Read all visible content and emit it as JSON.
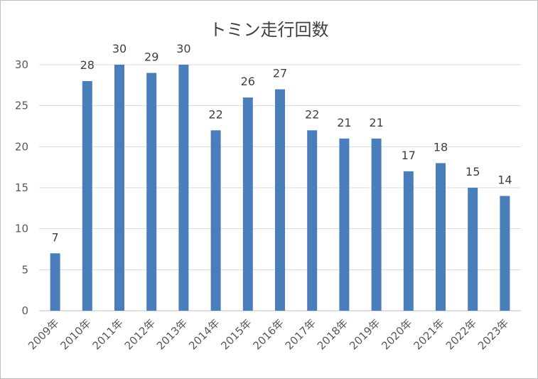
{
  "chart_data": {
    "type": "bar",
    "title": "トミン走行回数",
    "categories": [
      "2009年",
      "2010年",
      "2011年",
      "2012年",
      "2013年",
      "2014年",
      "2015年",
      "2016年",
      "2017年",
      "2018年",
      "2019年",
      "2020年",
      "2021年",
      "2022年",
      "2023年"
    ],
    "values": [
      7,
      28,
      30,
      29,
      30,
      22,
      26,
      27,
      22,
      21,
      21,
      17,
      18,
      15,
      14
    ],
    "xlabel": "",
    "ylabel": "",
    "ylim": [
      0,
      30
    ],
    "yticks": [
      0,
      5,
      10,
      15,
      20,
      25,
      30
    ],
    "grid": true,
    "data_labels": true,
    "bar_color": "#4a7ebb"
  }
}
